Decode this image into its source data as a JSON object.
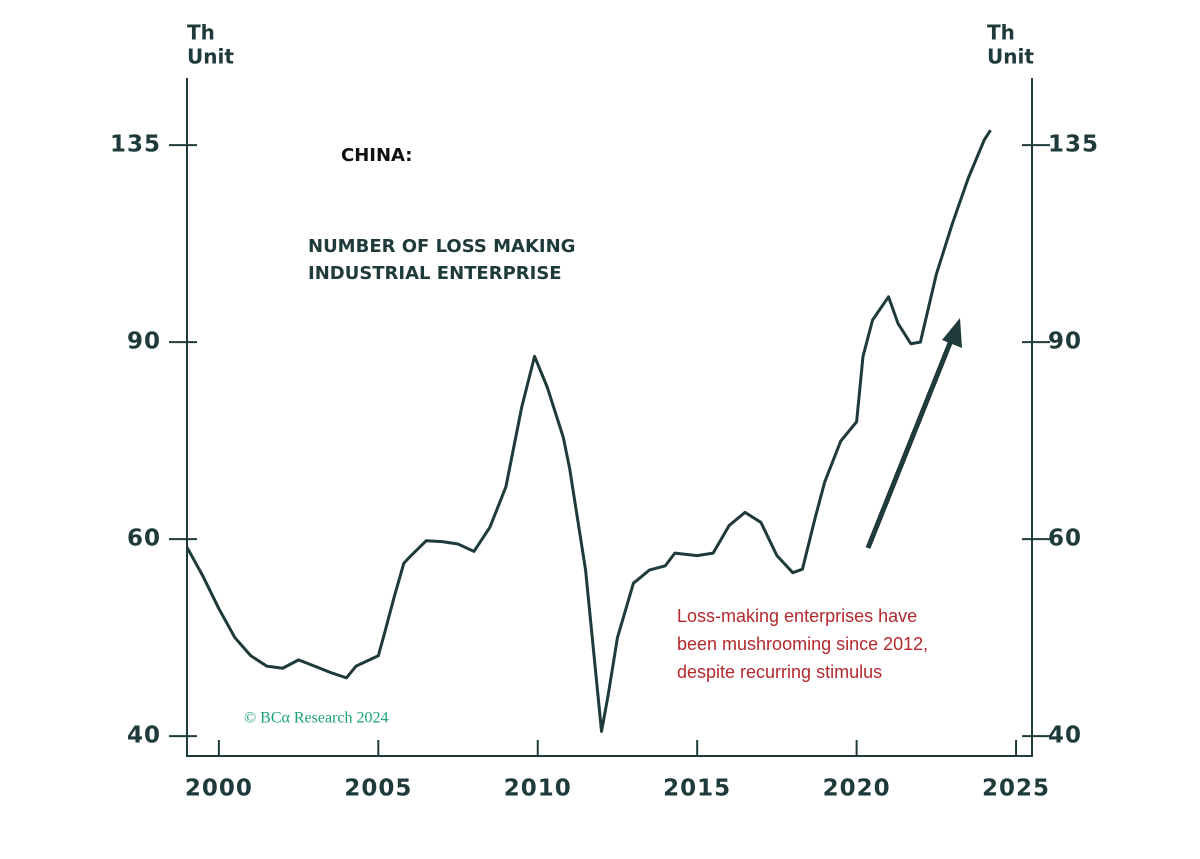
{
  "chart_data": {
    "type": "line",
    "title": "CHINA:",
    "subtitle": [
      "NUMBER OF LOSS MAKING",
      "INDUSTRIAL ENTERPRISE"
    ],
    "y_label": [
      "Th",
      "Unit"
    ],
    "y2_label": [
      "Th",
      "Unit"
    ],
    "annotation": [
      "Loss-making enterprises have",
      "been mushrooming since 2012,",
      "despite recurring stimulus"
    ],
    "source": "© BCα Research 2024",
    "yscale": "log",
    "xlim": [
      1999,
      2025.5
    ],
    "xticks": [
      2000,
      2005,
      2010,
      2015,
      2020,
      2025
    ],
    "ylim": [
      38.4,
      155
    ],
    "yticks": [
      40,
      60,
      90,
      135
    ],
    "y2lim": [
      38.4,
      155
    ],
    "y2ticks": [
      40,
      60,
      90,
      135
    ],
    "x": [
      1999.0,
      1999.5,
      2000.0,
      2000.5,
      2001.0,
      2001.5,
      2002.0,
      2002.5,
      2003.0,
      2003.5,
      2004.0,
      2004.3,
      2005.0,
      2005.2,
      2005.5,
      2005.8,
      2006.0,
      2006.5,
      2007.0,
      2007.5,
      2008.0,
      2008.5,
      2009.0,
      2009.5,
      2009.9,
      2010.3,
      2010.8,
      2011.0,
      2011.5,
      2012.0,
      2012.2,
      2012.5,
      2013.0,
      2013.5,
      2014.0,
      2014.3,
      2015.0,
      2015.5,
      2016.0,
      2016.5,
      2017.0,
      2017.5,
      2018.0,
      2018.3,
      2018.7,
      2019.0,
      2019.5,
      2020.0,
      2020.2,
      2020.5,
      2021.0,
      2021.3,
      2021.7,
      2022.0,
      2022.5,
      2023.0,
      2023.5,
      2024.0,
      2024.2
    ],
    "series": [
      {
        "name": "Loss making industrial enterprises",
        "color": "#1f3a3a",
        "values": [
          59,
          55.6,
          52,
          49,
          47.2,
          46.2,
          46.0,
          46.8,
          46.2,
          45.6,
          45.1,
          46.2,
          47.2,
          49.5,
          53.3,
          57.1,
          57.9,
          59.8,
          59.7,
          59.4,
          58.5,
          61.5,
          66.8,
          78.8,
          87.4,
          82,
          74,
          69.4,
          56.3,
          40.4,
          43.4,
          49,
          54.8,
          56.3,
          56.8,
          58.3,
          58.0,
          58.3,
          61.7,
          63.4,
          62.1,
          58.0,
          56.0,
          56.4,
          62.7,
          67.5,
          73.4,
          76.4,
          87.4,
          94.2,
          98.8,
          93.5,
          89.7,
          90,
          103.5,
          114.8,
          126.1,
          136.4,
          139.2
        ]
      }
    ]
  }
}
